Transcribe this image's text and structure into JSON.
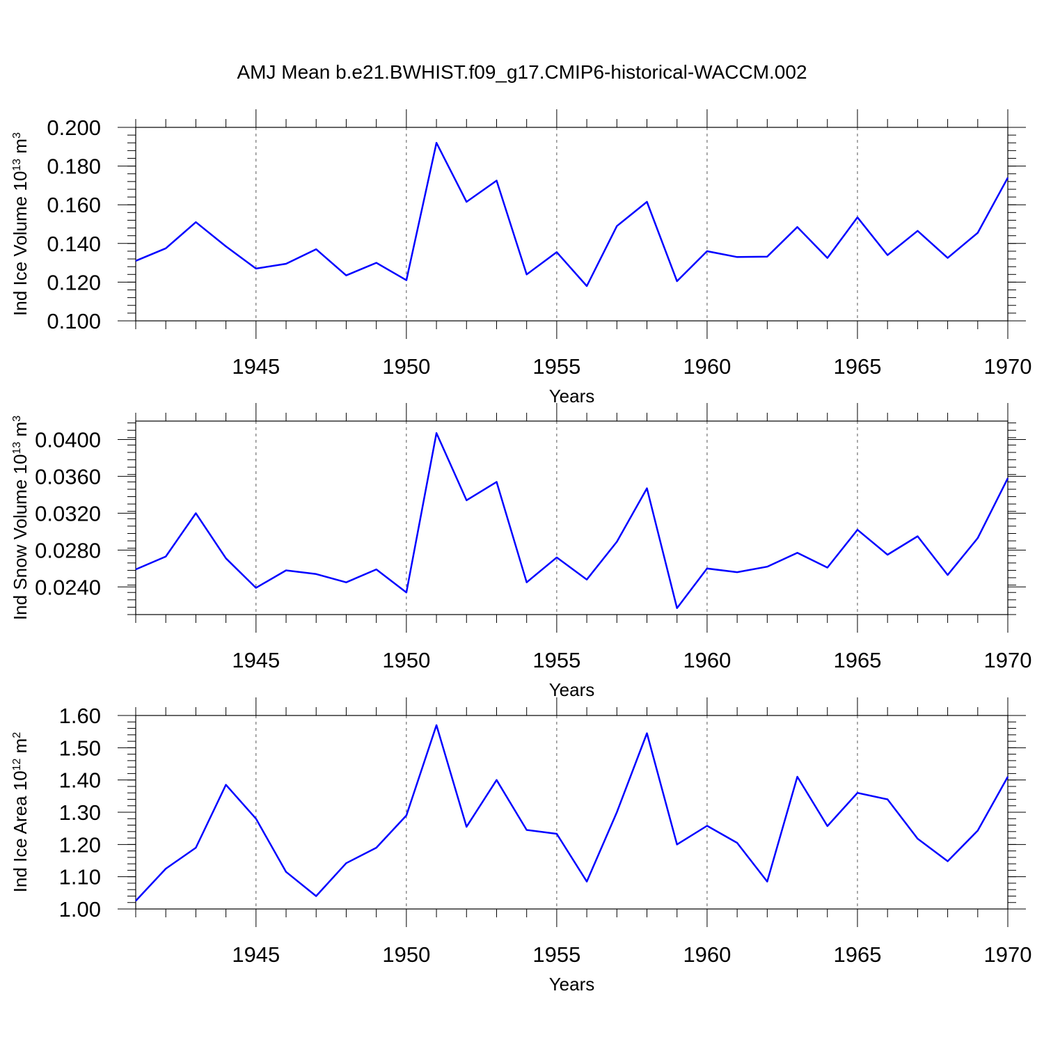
{
  "title": "AMJ Mean b.e21.BWHIST.f09_g17.CMIP6-historical-WACCM.002",
  "line_color": "#0000ff",
  "chart_data": [
    {
      "type": "line",
      "xlabel": "Years",
      "ylabel": {
        "text": "Ind Ice Volume 10",
        "sup": "13",
        "unit": " m",
        "unit_sup": "3"
      },
      "xlim": [
        1941,
        1970
      ],
      "ylim": [
        0.1,
        0.2
      ],
      "xticks": [
        1945,
        1950,
        1955,
        1960,
        1965,
        1970
      ],
      "yticks": [
        0.1,
        0.12,
        0.14,
        0.16,
        0.18,
        0.2
      ],
      "ytick_labels": [
        "0.100",
        "0.120",
        "0.140",
        "0.160",
        "0.180",
        "0.200"
      ],
      "x": [
        1941,
        1942,
        1943,
        1944,
        1945,
        1946,
        1947,
        1948,
        1949,
        1950,
        1951,
        1952,
        1953,
        1954,
        1955,
        1956,
        1957,
        1958,
        1959,
        1960,
        1961,
        1962,
        1963,
        1964,
        1965,
        1966,
        1967,
        1968,
        1969,
        1970
      ],
      "values": [
        0.131,
        0.1375,
        0.151,
        0.1385,
        0.127,
        0.1295,
        0.137,
        0.1235,
        0.13,
        0.121,
        0.192,
        0.1615,
        0.1725,
        0.124,
        0.1355,
        0.118,
        0.149,
        0.1615,
        0.1205,
        0.136,
        0.133,
        0.1332,
        0.1485,
        0.1325,
        0.1535,
        0.134,
        0.1465,
        0.1325,
        0.1455,
        0.174
      ]
    },
    {
      "type": "line",
      "xlabel": "Years",
      "ylabel": {
        "text": "Ind Snow Volume 10",
        "sup": "13",
        "unit": " m",
        "unit_sup": "3"
      },
      "xlim": [
        1941,
        1970
      ],
      "ylim": [
        0.021,
        0.042
      ],
      "xticks": [
        1945,
        1950,
        1955,
        1960,
        1965,
        1970
      ],
      "yticks": [
        0.024,
        0.028,
        0.032,
        0.036,
        0.04
      ],
      "ytick_labels": [
        "0.0240",
        "0.0280",
        "0.0320",
        "0.0360",
        "0.0400"
      ],
      "x": [
        1941,
        1942,
        1943,
        1944,
        1945,
        1946,
        1947,
        1948,
        1949,
        1950,
        1951,
        1952,
        1953,
        1954,
        1955,
        1956,
        1957,
        1958,
        1959,
        1960,
        1961,
        1962,
        1963,
        1964,
        1965,
        1966,
        1967,
        1968,
        1969,
        1970
      ],
      "values": [
        0.0259,
        0.0273,
        0.032,
        0.0271,
        0.0239,
        0.0258,
        0.0254,
        0.0245,
        0.0259,
        0.0234,
        0.0407,
        0.0334,
        0.0354,
        0.0245,
        0.0272,
        0.0248,
        0.0289,
        0.0347,
        0.0217,
        0.026,
        0.0256,
        0.0262,
        0.0277,
        0.0261,
        0.0302,
        0.0275,
        0.0295,
        0.0253,
        0.0293,
        0.0358
      ]
    },
    {
      "type": "line",
      "xlabel": "Years",
      "ylabel": {
        "text": "Ind Ice Area 10",
        "sup": "12",
        "unit": " m",
        "unit_sup": "2"
      },
      "xlim": [
        1941,
        1970
      ],
      "ylim": [
        1.0,
        1.6
      ],
      "xticks": [
        1945,
        1950,
        1955,
        1960,
        1965,
        1970
      ],
      "yticks": [
        1.0,
        1.1,
        1.2,
        1.3,
        1.4,
        1.5,
        1.6
      ],
      "ytick_labels": [
        "1.00",
        "1.10",
        "1.20",
        "1.30",
        "1.40",
        "1.50",
        "1.60"
      ],
      "x": [
        1941,
        1942,
        1943,
        1944,
        1945,
        1946,
        1947,
        1948,
        1949,
        1950,
        1951,
        1952,
        1953,
        1954,
        1955,
        1956,
        1957,
        1958,
        1959,
        1960,
        1961,
        1962,
        1963,
        1964,
        1965,
        1966,
        1967,
        1968,
        1969,
        1970
      ],
      "values": [
        1.025,
        1.125,
        1.19,
        1.385,
        1.28,
        1.115,
        1.04,
        1.142,
        1.19,
        1.29,
        1.57,
        1.255,
        1.4,
        1.245,
        1.233,
        1.085,
        1.3,
        1.545,
        1.2,
        1.258,
        1.205,
        1.085,
        1.41,
        1.257,
        1.36,
        1.34,
        1.218,
        1.148,
        1.243,
        1.41
      ]
    }
  ]
}
